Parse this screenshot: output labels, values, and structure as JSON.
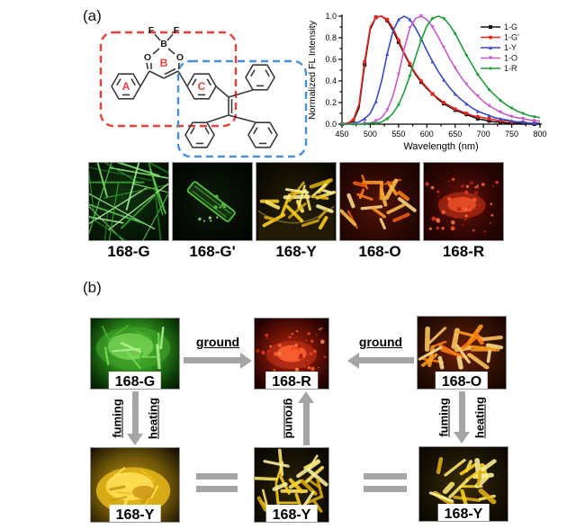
{
  "panel_a": {
    "label": "(a)",
    "structure": {
      "atoms": {
        "f1": "F",
        "f2": "F",
        "b": "B",
        "o1": "O",
        "o2": "O"
      },
      "rings": {
        "a": "A",
        "b": "B",
        "c": "C"
      },
      "highlight_colors": {
        "red_box": "#e8413c",
        "blue_box": "#4a90d9"
      }
    },
    "photos": [
      {
        "label": "168-G"
      },
      {
        "label": "168-G'"
      },
      {
        "label": "168-Y"
      },
      {
        "label": "168-O"
      },
      {
        "label": "168-R"
      }
    ]
  },
  "chart_data": {
    "type": "line",
    "title": "",
    "xlabel": "Wavelength (nm)",
    "ylabel": "Normalized FL Intensity",
    "xlim": [
      450,
      800
    ],
    "ylim": [
      0.0,
      1.0
    ],
    "xticks": [
      450,
      500,
      550,
      600,
      650,
      700,
      750,
      800
    ],
    "yticks": [
      "0.0",
      "0.2",
      "0.4",
      "0.6",
      "0.8",
      "1.0"
    ],
    "legend_position": "top-right",
    "grid": false,
    "x": [
      450,
      460,
      470,
      480,
      490,
      500,
      510,
      520,
      530,
      540,
      550,
      560,
      570,
      580,
      590,
      600,
      610,
      620,
      630,
      640,
      650,
      660,
      670,
      680,
      690,
      700,
      710,
      720,
      730,
      740,
      750,
      760,
      770,
      780,
      790,
      800
    ],
    "series": [
      {
        "name": "1-G",
        "color": "#101010",
        "peak_nm": 515,
        "values": [
          0,
          0.01,
          0.03,
          0.15,
          0.55,
          0.88,
          0.99,
          1.0,
          0.96,
          0.87,
          0.76,
          0.65,
          0.55,
          0.46,
          0.39,
          0.33,
          0.28,
          0.23,
          0.19,
          0.16,
          0.13,
          0.11,
          0.09,
          0.07,
          0.05,
          0.04,
          0.03,
          0.02,
          0.02,
          0.01,
          0.01,
          0.01,
          0.01,
          0,
          0,
          0
        ]
      },
      {
        "name": "1-G'",
        "color": "#e8231f",
        "peak_nm": 520,
        "values": [
          0,
          0.01,
          0.04,
          0.18,
          0.58,
          0.9,
          0.99,
          1.0,
          0.97,
          0.89,
          0.78,
          0.66,
          0.56,
          0.47,
          0.4,
          0.34,
          0.28,
          0.24,
          0.2,
          0.17,
          0.14,
          0.12,
          0.1,
          0.08,
          0.07,
          0.06,
          0.05,
          0.04,
          0.03,
          0.03,
          0.02,
          0.02,
          0.02,
          0.01,
          0.01,
          0.01
        ]
      },
      {
        "name": "1-Y",
        "color": "#3b4cc0",
        "peak_nm": 557,
        "values": [
          0,
          0,
          0.01,
          0.02,
          0.05,
          0.1,
          0.21,
          0.4,
          0.65,
          0.86,
          0.97,
          1.0,
          0.97,
          0.89,
          0.79,
          0.68,
          0.58,
          0.49,
          0.41,
          0.34,
          0.28,
          0.23,
          0.19,
          0.15,
          0.12,
          0.1,
          0.08,
          0.06,
          0.05,
          0.04,
          0.03,
          0.02,
          0.02,
          0.01,
          0.01,
          0.01
        ]
      },
      {
        "name": "1-O",
        "color": "#c75bc7",
        "peak_nm": 588,
        "values": [
          0,
          0,
          0,
          0,
          0.01,
          0.01,
          0.03,
          0.06,
          0.13,
          0.26,
          0.46,
          0.7,
          0.89,
          0.98,
          1.0,
          0.97,
          0.9,
          0.81,
          0.71,
          0.61,
          0.52,
          0.44,
          0.37,
          0.31,
          0.26,
          0.21,
          0.17,
          0.14,
          0.11,
          0.09,
          0.07,
          0.06,
          0.05,
          0.04,
          0.03,
          0.03
        ]
      },
      {
        "name": "1-R",
        "color": "#1f9e3c",
        "peak_nm": 622,
        "values": [
          0,
          0,
          0,
          0,
          0,
          0.01,
          0.01,
          0.02,
          0.05,
          0.1,
          0.18,
          0.3,
          0.45,
          0.62,
          0.78,
          0.91,
          0.98,
          1.0,
          0.98,
          0.92,
          0.84,
          0.74,
          0.64,
          0.55,
          0.46,
          0.39,
          0.32,
          0.27,
          0.22,
          0.18,
          0.15,
          0.12,
          0.1,
          0.08,
          0.07,
          0.06
        ]
      }
    ]
  },
  "panel_b": {
    "label": "(b)",
    "nodes": {
      "g": "168-G",
      "r": "168-R",
      "o": "168-O",
      "y1": "168-Y",
      "y2": "168-Y",
      "y3": "168-Y"
    },
    "arrows": {
      "ground": "ground",
      "fuming": "fuming",
      "heating": "heating"
    }
  }
}
